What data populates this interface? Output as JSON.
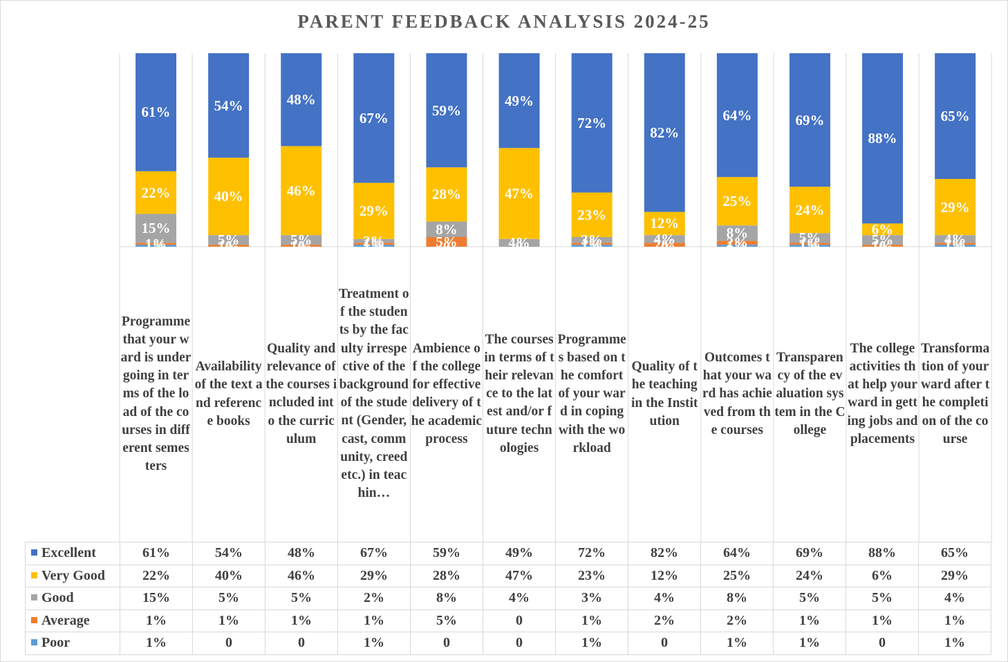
{
  "chart_data": {
    "type": "bar",
    "stacked": true,
    "percent_stacked": true,
    "title": "PARENT FEEDBACK ANALYSIS 2024-25",
    "legend_position": "bottom-table",
    "categories": [
      "Programme that your ward is undergoing in terms of the load of the courses in different semesters",
      "Availability of the text and reference books",
      "Quality and relevance of the courses included into the curriculum",
      "Treatment of the students by the faculty irrespective of the background of the student (Gender, cast, community, creed etc.) in teachin…",
      "Ambience of the college for effective delivery of the academic process",
      "The courses in terms of their relevance to the latest and/or future technologies",
      "Programmes based on the comfort of your ward in coping with the workload",
      "Quality of the teaching in the Institution",
      "Outcomes that your ward has achieved from the courses",
      "Transparency of the evaluation system in the College",
      "The college activities that help your ward in getting jobs and placements",
      "Transformation of your ward after the completion of the course"
    ],
    "series": [
      {
        "name": "Excellent",
        "color": "#4472C4",
        "values": [
          61,
          54,
          48,
          67,
          59,
          49,
          72,
          82,
          64,
          69,
          88,
          65
        ],
        "labels": [
          "61%",
          "54%",
          "48%",
          "67%",
          "59%",
          "49%",
          "72%",
          "82%",
          "64%",
          "69%",
          "88%",
          "65%"
        ]
      },
      {
        "name": "Very Good",
        "color": "#FFC000",
        "values": [
          22,
          40,
          46,
          29,
          28,
          47,
          23,
          12,
          25,
          24,
          6,
          29
        ],
        "labels": [
          "22%",
          "40%",
          "46%",
          "29%",
          "28%",
          "47%",
          "23%",
          "12%",
          "25%",
          "24%",
          "6%",
          "29%"
        ]
      },
      {
        "name": "Good",
        "color": "#A5A5A5",
        "values": [
          15,
          5,
          5,
          2,
          8,
          4,
          3,
          4,
          8,
          5,
          5,
          4
        ],
        "labels": [
          "15%",
          "5%",
          "5%",
          "2%",
          "8%",
          "4%",
          "3%",
          "4%",
          "8%",
          "5%",
          "5%",
          "4%"
        ]
      },
      {
        "name": "Average",
        "color": "#ED7D31",
        "values": [
          1,
          1,
          1,
          1,
          5,
          0,
          1,
          2,
          2,
          1,
          1,
          1
        ],
        "labels": [
          "1%",
          "1%",
          "1%",
          "1%",
          "5%",
          "0",
          "1%",
          "2%",
          "2%",
          "1%",
          "1%",
          "1%"
        ]
      },
      {
        "name": "Poor",
        "color": "#5B9BD5",
        "values": [
          1,
          0,
          0,
          1,
          0,
          0,
          1,
          0,
          1,
          1,
          0,
          1
        ],
        "labels": [
          "1%",
          "0",
          "0",
          "1%",
          "0",
          "0",
          "1%",
          "0",
          "1%",
          "1%",
          "0",
          "1%"
        ]
      }
    ],
    "ylim": [
      0,
      100
    ],
    "grid": false
  }
}
